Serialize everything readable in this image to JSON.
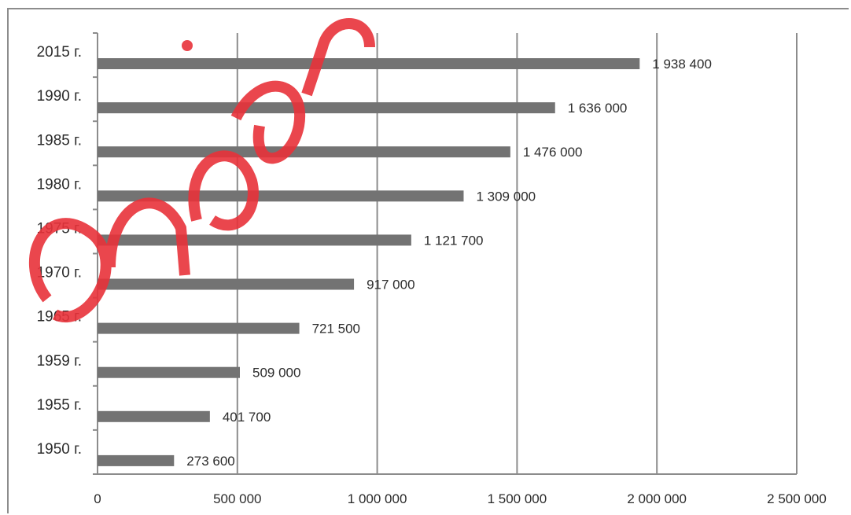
{
  "chart_data": {
    "type": "bar",
    "orientation": "horizontal",
    "categories": [
      "1950 г.",
      "1955 г.",
      "1959 г.",
      "1965 г.",
      "1970 г.",
      "1975 г.",
      "1980 г.",
      "1985 г.",
      "1990 г.",
      "2015 г."
    ],
    "values": [
      273600,
      401700,
      509000,
      721500,
      917000,
      1121700,
      1309000,
      1476000,
      1636000,
      1938400
    ],
    "value_labels": [
      "273 600",
      "401 700",
      "509 000",
      "721 500",
      "917 000",
      "1 121 700",
      "1 309 000",
      "1 476 000",
      "1 636 000",
      "1 938 400"
    ],
    "x_ticks": [
      0,
      500000,
      1000000,
      1500000,
      2000000,
      2500000
    ],
    "x_tick_labels": [
      "0",
      "500 000",
      "1 000 000",
      "1 500 000",
      "2 000 000",
      "2 500 000"
    ],
    "xlim": [
      0,
      2500000
    ],
    "title": "",
    "xlabel": "",
    "ylabel": "",
    "grid": "vertical",
    "bar_color": "#737373",
    "grid_color": "#8c8c8c"
  },
  "watermark": {
    "text": "znaj.in"
  }
}
